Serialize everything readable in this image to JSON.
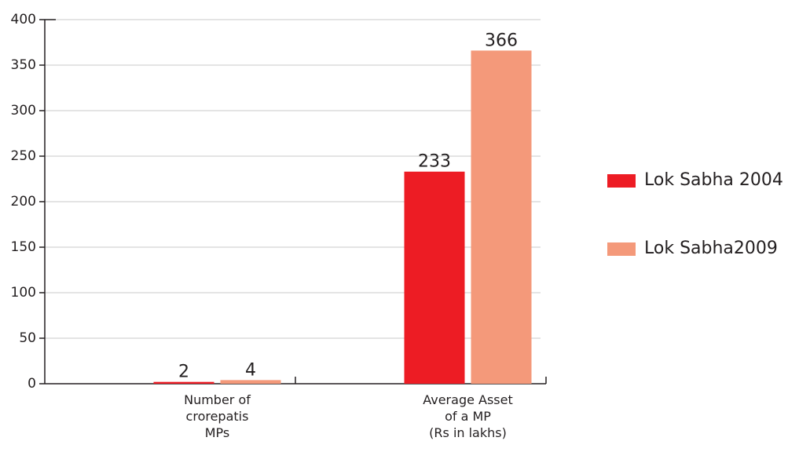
{
  "chart_data": {
    "type": "bar",
    "categories": [
      "Number of\ncrorepatis\nMPs",
      "Average Asset\nof a MP\n(Rs in lakhs)"
    ],
    "series": [
      {
        "name": "Lok Sabha 2004",
        "color": "#ed1c24",
        "values": [
          2,
          233
        ]
      },
      {
        "name": "Lok Sabha2009",
        "color": "#f4997a",
        "values": [
          4,
          366
        ]
      }
    ],
    "ylim": [
      0,
      400
    ],
    "yticks": [
      0,
      50,
      100,
      150,
      200,
      250,
      300,
      350,
      400
    ],
    "grid": true,
    "legend": "right"
  }
}
